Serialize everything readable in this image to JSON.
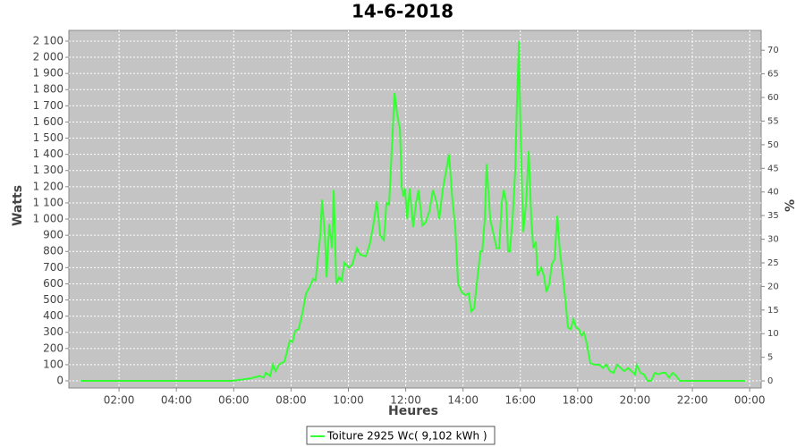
{
  "chart_data": {
    "type": "line",
    "title": "14-6-2018",
    "x_label": "Heures",
    "y_label": "Watts",
    "y2_label": "%",
    "grid": true,
    "xlim": [
      0.25,
      24.4
    ],
    "ylim": [
      -44,
      2166
    ],
    "y2lim": [
      -1.5,
      74.2
    ],
    "xticks": [
      {
        "value": 2,
        "label": "02:00"
      },
      {
        "value": 4,
        "label": "04:00"
      },
      {
        "value": 6,
        "label": "06:00"
      },
      {
        "value": 8,
        "label": "08:00"
      },
      {
        "value": 10,
        "label": "10:00"
      },
      {
        "value": 12,
        "label": "12:00"
      },
      {
        "value": 14,
        "label": "14:00"
      },
      {
        "value": 16,
        "label": "16:00"
      },
      {
        "value": 18,
        "label": "18:00"
      },
      {
        "value": 20,
        "label": "20:00"
      },
      {
        "value": 22,
        "label": "22:00"
      },
      {
        "value": 24,
        "label": "00:00"
      }
    ],
    "yticks": [
      0,
      100,
      200,
      300,
      400,
      500,
      600,
      700,
      800,
      900,
      {
        "value": 1000,
        "label": "1 000"
      },
      {
        "value": 1100,
        "label": "1 100"
      },
      {
        "value": 1200,
        "label": "1 200"
      },
      {
        "value": 1300,
        "label": "1 300"
      },
      {
        "value": 1400,
        "label": "1 400"
      },
      {
        "value": 1500,
        "label": "1 500"
      },
      {
        "value": 1600,
        "label": "1 600"
      },
      {
        "value": 1700,
        "label": "1 700"
      },
      {
        "value": 1800,
        "label": "1 800"
      },
      {
        "value": 1900,
        "label": "1 900"
      },
      {
        "value": 2000,
        "label": "2 000"
      },
      {
        "value": 2100,
        "label": "2 100"
      }
    ],
    "y2ticks": [
      0,
      5,
      10,
      15,
      20,
      25,
      30,
      35,
      40,
      45,
      50,
      55,
      60,
      65,
      70
    ],
    "x": [
      0.66,
      2.53,
      4.09,
      5.96,
      6.59,
      6.9,
      7.05,
      7.12,
      7.27,
      7.37,
      7.46,
      7.58,
      7.77,
      7.83,
      7.96,
      8.05,
      8.15,
      8.27,
      8.4,
      8.52,
      8.65,
      8.77,
      8.86,
      8.93,
      9.02,
      9.08,
      9.18,
      9.24,
      9.33,
      9.43,
      9.49,
      9.58,
      9.68,
      9.77,
      9.86,
      10.02,
      10.14,
      10.3,
      10.42,
      10.61,
      10.74,
      10.86,
      10.99,
      11.11,
      11.24,
      11.33,
      11.42,
      11.52,
      11.61,
      11.7,
      11.8,
      11.86,
      11.92,
      11.98,
      12.05,
      12.14,
      12.26,
      12.36,
      12.45,
      12.58,
      12.7,
      12.83,
      12.95,
      13.08,
      13.17,
      13.29,
      13.51,
      13.64,
      13.73,
      13.83,
      13.95,
      14.08,
      14.2,
      14.29,
      14.39,
      14.51,
      14.61,
      14.67,
      14.76,
      14.82,
      14.95,
      15.07,
      15.17,
      15.26,
      15.35,
      15.42,
      15.51,
      15.57,
      15.63,
      15.73,
      15.82,
      15.88,
      15.95,
      16.01,
      16.1,
      16.2,
      16.29,
      16.38,
      16.45,
      16.54,
      16.6,
      16.73,
      16.82,
      16.91,
      17.01,
      17.1,
      17.19,
      17.29,
      17.38,
      17.48,
      17.57,
      17.66,
      17.76,
      17.85,
      17.94,
      18.04,
      18.13,
      18.22,
      18.32,
      18.44,
      18.57,
      18.75,
      18.88,
      19.0,
      19.13,
      19.25,
      19.38,
      19.5,
      19.63,
      19.75,
      19.88,
      20.0,
      20.06,
      20.19,
      20.31,
      20.44,
      20.56,
      20.69,
      20.81,
      20.94,
      21.06,
      21.19,
      21.31,
      21.44,
      21.56,
      22.81,
      23.84
    ],
    "series": [
      {
        "name": "Toiture 2925 Wc( 9,102 kWh )",
        "color": "#33ff33",
        "values": [
          0,
          0,
          0,
          0,
          15,
          30,
          20,
          50,
          30,
          100,
          60,
          100,
          120,
          160,
          250,
          240,
          310,
          320,
          420,
          540,
          580,
          630,
          620,
          750,
          900,
          1120,
          900,
          640,
          970,
          820,
          1180,
          600,
          640,
          620,
          730,
          700,
          720,
          820,
          780,
          770,
          840,
          950,
          1110,
          900,
          870,
          1100,
          1090,
          1450,
          1780,
          1650,
          1550,
          1200,
          1140,
          1190,
          1000,
          1190,
          950,
          1100,
          1180,
          960,
          980,
          1050,
          1180,
          1100,
          1000,
          1180,
          1400,
          1100,
          950,
          600,
          550,
          530,
          540,
          430,
          450,
          650,
          800,
          800,
          1000,
          1340,
          1000,
          900,
          820,
          820,
          1100,
          1180,
          1100,
          800,
          800,
          1000,
          1300,
          1700,
          2100,
          1500,
          920,
          1100,
          1420,
          1000,
          820,
          860,
          650,
          700,
          650,
          550,
          600,
          720,
          750,
          1020,
          800,
          650,
          500,
          330,
          320,
          380,
          330,
          320,
          280,
          300,
          230,
          110,
          100,
          100,
          80,
          100,
          60,
          50,
          100,
          80,
          60,
          80,
          60,
          40,
          100,
          50,
          40,
          0,
          0,
          50,
          40,
          50,
          50,
          20,
          50,
          30,
          0,
          0,
          0
        ]
      }
    ]
  }
}
